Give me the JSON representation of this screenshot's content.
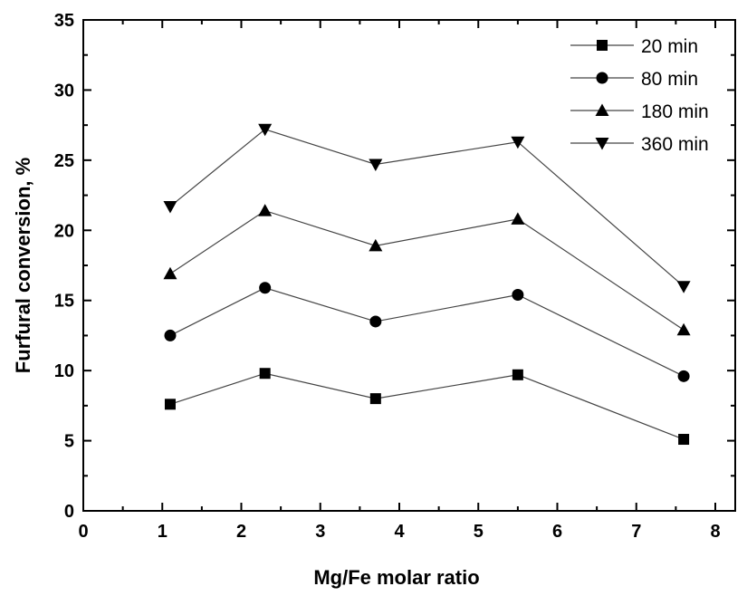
{
  "chart_data": {
    "type": "line",
    "xlabel": "Mg/Fe molar ratio",
    "ylabel": "Furfural conversion, %",
    "xlim": [
      0,
      8.3
    ],
    "ylim": [
      0,
      35
    ],
    "xticks": [
      0,
      1,
      2,
      3,
      4,
      5,
      6,
      7,
      8
    ],
    "yticks": [
      0,
      5,
      10,
      15,
      20,
      25,
      30,
      35
    ],
    "x": [
      1.1,
      2.3,
      3.7,
      5.5,
      7.6
    ],
    "grid": false,
    "legend_position": "top-right",
    "series": [
      {
        "name": "20 min",
        "marker": "square",
        "values": [
          7.6,
          9.8,
          8.0,
          9.7,
          5.1
        ]
      },
      {
        "name": "80 min",
        "marker": "circle",
        "values": [
          12.5,
          15.9,
          13.5,
          15.4,
          9.6
        ]
      },
      {
        "name": "180 min",
        "marker": "triangle-up",
        "values": [
          16.9,
          21.4,
          18.9,
          20.8,
          12.9
        ]
      },
      {
        "name": "360 min",
        "marker": "triangle-down",
        "values": [
          21.7,
          27.2,
          24.7,
          26.3,
          16.0
        ]
      }
    ]
  }
}
